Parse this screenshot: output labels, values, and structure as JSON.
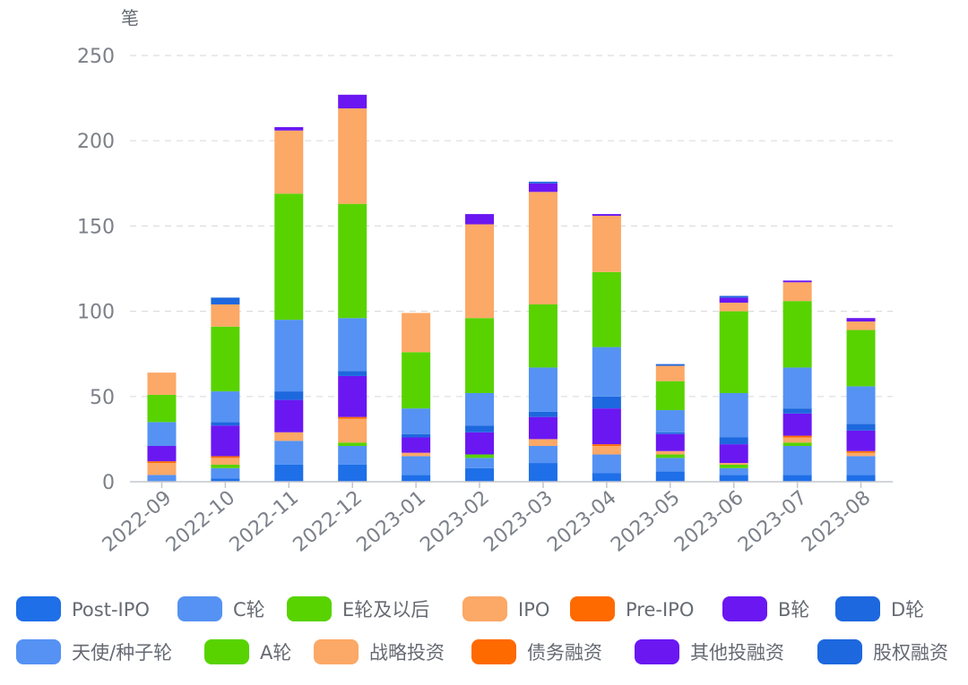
{
  "chart_data": {
    "type": "bar",
    "stacked": true,
    "ylabel": "笔",
    "ylim": [
      0,
      250
    ],
    "yticks": [
      0,
      50,
      100,
      150,
      200,
      250
    ],
    "grid": true,
    "legend_position": "bottom",
    "categories": [
      "2022-09",
      "2022-10",
      "2022-11",
      "2022-12",
      "2023-01",
      "2023-02",
      "2023-03",
      "2023-04",
      "2023-05",
      "2023-06",
      "2023-07",
      "2023-08"
    ],
    "series": [
      {
        "name": "Post-IPO",
        "color": "#1e6fe8",
        "values": [
          0,
          2,
          10,
          10,
          4,
          8,
          11,
          5,
          6,
          4,
          4,
          4
        ]
      },
      {
        "name": "C轮",
        "color": "#5592f3",
        "values": [
          4,
          6,
          14,
          11,
          11,
          6,
          10,
          11,
          8,
          4,
          17,
          11
        ]
      },
      {
        "name": "E轮及以后",
        "color": "#58d300",
        "values": [
          0,
          2,
          0,
          2,
          0,
          2,
          0,
          0,
          2,
          2,
          2,
          0
        ]
      },
      {
        "name": "IPO",
        "color": "#fca866",
        "values": [
          7,
          4,
          5,
          14,
          2,
          0,
          4,
          5,
          2,
          1,
          3,
          2
        ]
      },
      {
        "name": "Pre-IPO",
        "color": "#ff6a00",
        "values": [
          1,
          1,
          0,
          1,
          0,
          0,
          0,
          1,
          0,
          0,
          1,
          1
        ]
      },
      {
        "name": "B轮",
        "color": "#6a17f2",
        "values": [
          9,
          18,
          19,
          24,
          9,
          13,
          13,
          21,
          10,
          11,
          13,
          12
        ]
      },
      {
        "name": "D轮",
        "color": "#1d68de",
        "values": [
          0,
          2,
          5,
          3,
          2,
          4,
          3,
          7,
          1,
          4,
          3,
          4
        ]
      },
      {
        "name": "天使/种子轮",
        "color": "#5592f3",
        "values": [
          14,
          18,
          42,
          31,
          15,
          19,
          26,
          29,
          13,
          26,
          24,
          22
        ]
      },
      {
        "name": "A轮",
        "color": "#58d300",
        "values": [
          16,
          38,
          74,
          67,
          33,
          44,
          37,
          44,
          17,
          48,
          39,
          33
        ]
      },
      {
        "name": "战略投资",
        "color": "#fca866",
        "values": [
          13,
          13,
          37,
          56,
          23,
          55,
          66,
          33,
          9,
          5,
          11,
          5
        ]
      },
      {
        "name": "债务融资",
        "color": "#ff6a00",
        "values": [
          0,
          0,
          0,
          0,
          0,
          0,
          0,
          0,
          0,
          0,
          0,
          0
        ]
      },
      {
        "name": "其他投融资",
        "color": "#6a17f2",
        "values": [
          0,
          0,
          2,
          8,
          0,
          6,
          5,
          1,
          0,
          3,
          1,
          2
        ]
      },
      {
        "name": "股权融资",
        "color": "#1d68de",
        "values": [
          0,
          4,
          0,
          0,
          0,
          0,
          1,
          0,
          1,
          1,
          0,
          0
        ]
      }
    ]
  }
}
